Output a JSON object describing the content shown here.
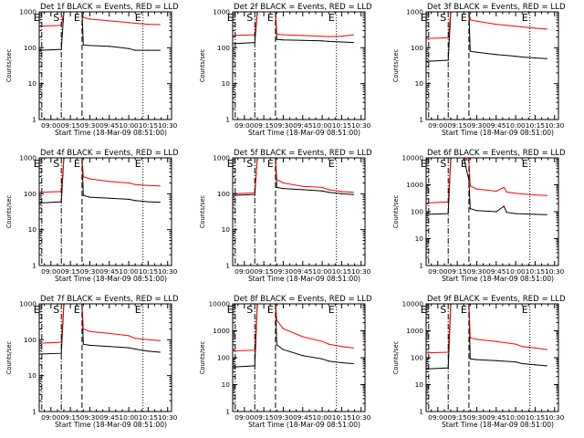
{
  "figure": {
    "panel_count": 9,
    "grid": "3x3",
    "colors": {
      "events": "#000000",
      "lld": "#ff0000",
      "background": "#ffffff"
    }
  },
  "chart_data": [
    {
      "type": "line",
      "title": "Det 1f BLACK = Events, RED = LLD",
      "xlabel": "Start Time (18-Mar-09 08:51:00)",
      "ylabel": "Counts/sec",
      "xlim": [
        "08:51",
        "10:33"
      ],
      "ylim": [
        1,
        1000
      ],
      "yscale": "log",
      "x_ticks": [
        "09:00",
        "09:15",
        "09:30",
        "09:45",
        "10:00",
        "10:15",
        "10:30"
      ],
      "y_ticks": [
        "1",
        "10",
        "100",
        "1000"
      ],
      "markers": [
        {
          "label": "E",
          "time": "08:53",
          "style": "dash-dot"
        },
        {
          "label": "S",
          "time": "09:08",
          "style": "dash-dot"
        },
        {
          "label": "E",
          "time": "09:24",
          "style": "dashed"
        },
        {
          "label": "E",
          "time": "10:11",
          "style": "dotted"
        }
      ],
      "series": [
        {
          "name": "Events",
          "color": "#000000",
          "x": [
            "08:51",
            "09:08",
            "09:10",
            "09:20",
            "09:24",
            "09:25",
            "09:30",
            "09:45",
            "10:00",
            "10:05",
            "10:15",
            "10:24"
          ],
          "y": [
            85,
            90,
            1000,
            1000,
            1000,
            120,
            115,
            110,
            95,
            85,
            85,
            85
          ]
        },
        {
          "name": "LLD",
          "color": "#ff0000",
          "x": [
            "08:51",
            "09:08",
            "09:10",
            "09:20",
            "09:24",
            "09:25",
            "09:30",
            "09:45",
            "10:00",
            "10:05",
            "10:15",
            "10:24"
          ],
          "y": [
            400,
            420,
            1000,
            1000,
            1000,
            700,
            630,
            560,
            500,
            480,
            450,
            440
          ]
        }
      ]
    },
    {
      "type": "line",
      "title": "Det 2f BLACK = Events, RED = LLD",
      "xlabel": "Start Time (18-Mar-09 08:51:00)",
      "ylabel": "Counts/sec",
      "xlim": [
        "08:51",
        "10:33"
      ],
      "ylim": [
        1,
        1000
      ],
      "yscale": "log",
      "x_ticks": [
        "09:00",
        "09:15",
        "09:30",
        "09:45",
        "10:00",
        "10:15",
        "10:30"
      ],
      "y_ticks": [
        "1",
        "10",
        "100",
        "1000"
      ],
      "markers": [
        {
          "label": "E",
          "time": "08:53",
          "style": "dash-dot"
        },
        {
          "label": "S",
          "time": "09:08",
          "style": "dash-dot"
        },
        {
          "label": "E",
          "time": "09:24",
          "style": "dashed"
        },
        {
          "label": "E",
          "time": "10:11",
          "style": "dotted"
        }
      ],
      "series": [
        {
          "name": "Events",
          "color": "#000000",
          "x": [
            "08:51",
            "09:08",
            "09:10",
            "09:20",
            "09:24",
            "09:25",
            "09:30",
            "09:45",
            "10:00",
            "10:05",
            "10:15",
            "10:24"
          ],
          "y": [
            130,
            140,
            1000,
            1000,
            1000,
            170,
            165,
            160,
            155,
            150,
            145,
            140
          ]
        },
        {
          "name": "LLD",
          "color": "#ff0000",
          "x": [
            "08:51",
            "09:08",
            "09:10",
            "09:20",
            "09:24",
            "09:25",
            "09:30",
            "09:45",
            "10:00",
            "10:05",
            "10:15",
            "10:24"
          ],
          "y": [
            220,
            230,
            1000,
            1000,
            1000,
            240,
            230,
            220,
            210,
            205,
            210,
            230
          ]
        }
      ]
    },
    {
      "type": "line",
      "title": "Det 3f BLACK = Events, RED = LLD",
      "xlabel": "Start Time (18-Mar-09 08:51:00)",
      "ylabel": "Counts/sec",
      "xlim": [
        "08:51",
        "10:33"
      ],
      "ylim": [
        1,
        1000
      ],
      "yscale": "log",
      "x_ticks": [
        "09:00",
        "09:15",
        "09:30",
        "09:45",
        "10:00",
        "10:15",
        "10:30"
      ],
      "y_ticks": [
        "1",
        "10",
        "100",
        "1000"
      ],
      "markers": [
        {
          "label": "E",
          "time": "08:53",
          "style": "dash-dot"
        },
        {
          "label": "S",
          "time": "09:08",
          "style": "dash-dot"
        },
        {
          "label": "E",
          "time": "09:24",
          "style": "dashed"
        },
        {
          "label": "E",
          "time": "10:11",
          "style": "dotted"
        }
      ],
      "series": [
        {
          "name": "Events",
          "color": "#000000",
          "x": [
            "08:51",
            "09:08",
            "09:10",
            "09:20",
            "09:24",
            "09:25",
            "09:30",
            "09:45",
            "10:00",
            "10:05",
            "10:15",
            "10:24"
          ],
          "y": [
            42,
            45,
            1000,
            1000,
            1000,
            80,
            75,
            65,
            58,
            55,
            52,
            50
          ]
        },
        {
          "name": "LLD",
          "color": "#ff0000",
          "x": [
            "08:51",
            "09:08",
            "09:10",
            "09:20",
            "09:24",
            "09:25",
            "09:30",
            "09:45",
            "10:00",
            "10:05",
            "10:15",
            "10:24"
          ],
          "y": [
            180,
            190,
            1000,
            1000,
            1000,
            600,
            550,
            450,
            400,
            380,
            350,
            330
          ]
        }
      ]
    },
    {
      "type": "line",
      "title": "Det 4f BLACK = Events, RED = LLD",
      "xlabel": "Start Time (18-Mar-09 08:51:00)",
      "ylabel": "Counts/sec",
      "xlim": [
        "08:51",
        "10:33"
      ],
      "ylim": [
        1,
        1000
      ],
      "yscale": "log",
      "x_ticks": [
        "09:00",
        "09:15",
        "09:30",
        "09:45",
        "10:00",
        "10:15",
        "10:30"
      ],
      "y_ticks": [
        "1",
        "10",
        "100",
        "1000"
      ],
      "markers": [
        {
          "label": "E",
          "time": "08:53",
          "style": "dash-dot"
        },
        {
          "label": "S",
          "time": "09:08",
          "style": "dash-dot"
        },
        {
          "label": "E",
          "time": "09:24",
          "style": "dashed"
        },
        {
          "label": "E",
          "time": "10:11",
          "style": "dotted"
        }
      ],
      "series": [
        {
          "name": "Events",
          "color": "#000000",
          "x": [
            "08:51",
            "09:08",
            "09:10",
            "09:20",
            "09:24",
            "09:25",
            "09:30",
            "09:45",
            "10:00",
            "10:05",
            "10:15",
            "10:24"
          ],
          "y": [
            55,
            60,
            1000,
            1000,
            1000,
            90,
            80,
            75,
            70,
            65,
            60,
            58
          ]
        },
        {
          "name": "LLD",
          "color": "#ff0000",
          "x": [
            "08:51",
            "09:08",
            "09:10",
            "09:20",
            "09:24",
            "09:25",
            "09:30",
            "09:45",
            "10:00",
            "10:05",
            "10:15",
            "10:24"
          ],
          "y": [
            110,
            115,
            1000,
            1000,
            1000,
            300,
            260,
            220,
            200,
            180,
            170,
            165
          ]
        }
      ]
    },
    {
      "type": "line",
      "title": "Det 5f BLACK = Events, RED = LLD",
      "xlabel": "Start Time (18-Mar-09 08:51:00)",
      "ylabel": "Counts/sec",
      "xlim": [
        "08:51",
        "10:33"
      ],
      "ylim": [
        1,
        1000
      ],
      "yscale": "log",
      "x_ticks": [
        "09:00",
        "09:15",
        "09:30",
        "09:45",
        "10:00",
        "10:15",
        "10:30"
      ],
      "y_ticks": [
        "1",
        "10",
        "100",
        "1000"
      ],
      "markers": [
        {
          "label": "E",
          "time": "08:53",
          "style": "dash-dot"
        },
        {
          "label": "S",
          "time": "09:08",
          "style": "dash-dot"
        },
        {
          "label": "E",
          "time": "09:24",
          "style": "dashed"
        },
        {
          "label": "E",
          "time": "10:11",
          "style": "dotted"
        }
      ],
      "series": [
        {
          "name": "Events",
          "color": "#000000",
          "x": [
            "08:51",
            "09:08",
            "09:10",
            "09:20",
            "09:24",
            "09:25",
            "09:30",
            "09:45",
            "10:00",
            "10:05",
            "10:15",
            "10:24"
          ],
          "y": [
            90,
            95,
            1000,
            1000,
            1000,
            150,
            140,
            130,
            120,
            110,
            100,
            95
          ]
        },
        {
          "name": "LLD",
          "color": "#ff0000",
          "x": [
            "08:51",
            "09:08",
            "09:10",
            "09:20",
            "09:24",
            "09:25",
            "09:30",
            "09:45",
            "10:00",
            "10:05",
            "10:15",
            "10:24"
          ],
          "y": [
            100,
            105,
            1000,
            1000,
            1000,
            250,
            200,
            160,
            150,
            130,
            115,
            110
          ]
        }
      ]
    },
    {
      "type": "line",
      "title": "Det 6f BLACK = Events, RED = LLD",
      "xlabel": "Start Time (18-Mar-09 08:51:00)",
      "ylabel": "Counts/sec",
      "xlim": [
        "08:51",
        "10:33"
      ],
      "ylim": [
        1,
        10000
      ],
      "yscale": "log",
      "x_ticks": [
        "09:00",
        "09:15",
        "09:30",
        "09:45",
        "10:00",
        "10:15",
        "10:30"
      ],
      "y_ticks": [
        "1",
        "10",
        "100",
        "1000",
        "10000"
      ],
      "markers": [
        {
          "label": "E",
          "time": "08:53",
          "style": "dash-dot"
        },
        {
          "label": "S",
          "time": "09:08",
          "style": "dash-dot"
        },
        {
          "label": "E",
          "time": "09:24",
          "style": "dashed"
        },
        {
          "label": "E",
          "time": "10:11",
          "style": "dotted"
        }
      ],
      "series": [
        {
          "name": "Events",
          "color": "#000000",
          "x": [
            "08:51",
            "09:08",
            "09:10",
            "09:20",
            "09:24",
            "09:25",
            "09:30",
            "09:45",
            "09:51",
            "09:53",
            "10:00",
            "10:15",
            "10:24"
          ],
          "y": [
            80,
            85,
            10000,
            10000,
            1500,
            130,
            110,
            100,
            160,
            95,
            85,
            80,
            78
          ]
        },
        {
          "name": "LLD",
          "color": "#ff0000",
          "x": [
            "08:51",
            "09:08",
            "09:10",
            "09:20",
            "09:24",
            "09:25",
            "09:30",
            "09:45",
            "09:51",
            "09:53",
            "10:00",
            "10:15",
            "10:24"
          ],
          "y": [
            210,
            230,
            10000,
            10000,
            8000,
            900,
            700,
            580,
            800,
            540,
            480,
            420,
            400
          ]
        }
      ]
    },
    {
      "type": "line",
      "title": "Det 7f BLACK = Events, RED = LLD",
      "xlabel": "Start Time (18-Mar-09 08:51:00)",
      "ylabel": "Counts/sec",
      "xlim": [
        "08:51",
        "10:33"
      ],
      "ylim": [
        1,
        1000
      ],
      "yscale": "log",
      "x_ticks": [
        "09:00",
        "09:15",
        "09:30",
        "09:45",
        "10:00",
        "10:15",
        "10:30"
      ],
      "y_ticks": [
        "1",
        "10",
        "100",
        "1000"
      ],
      "markers": [
        {
          "label": "E",
          "time": "08:53",
          "style": "dash-dot"
        },
        {
          "label": "S",
          "time": "09:08",
          "style": "dash-dot"
        },
        {
          "label": "E",
          "time": "09:24",
          "style": "dashed"
        },
        {
          "label": "E",
          "time": "10:11",
          "style": "dotted"
        }
      ],
      "series": [
        {
          "name": "Events",
          "color": "#000000",
          "x": [
            "08:51",
            "09:08",
            "09:10",
            "09:20",
            "09:24",
            "09:25",
            "09:30",
            "09:45",
            "10:00",
            "10:05",
            "10:15",
            "10:24"
          ],
          "y": [
            40,
            42,
            1000,
            1000,
            1000,
            75,
            70,
            65,
            60,
            55,
            48,
            45
          ]
        },
        {
          "name": "LLD",
          "color": "#ff0000",
          "x": [
            "08:51",
            "09:08",
            "09:10",
            "09:20",
            "09:24",
            "09:25",
            "09:30",
            "09:45",
            "10:00",
            "10:05",
            "10:15",
            "10:24"
          ],
          "y": [
            80,
            85,
            1000,
            1000,
            1000,
            200,
            170,
            150,
            130,
            110,
            100,
            95
          ]
        }
      ]
    },
    {
      "type": "line",
      "title": "Det 8f BLACK = Events, RED = LLD",
      "xlabel": "Start Time (18-Mar-09 08:51:00)",
      "ylabel": "Counts/sec",
      "xlim": [
        "08:51",
        "10:33"
      ],
      "ylim": [
        1,
        10000
      ],
      "yscale": "log",
      "x_ticks": [
        "09:00",
        "09:15",
        "09:30",
        "09:45",
        "10:00",
        "10:15",
        "10:30"
      ],
      "y_ticks": [
        "1",
        "10",
        "100",
        "1000",
        "10000"
      ],
      "markers": [
        {
          "label": "E",
          "time": "08:53",
          "style": "dash-dot"
        },
        {
          "label": "S",
          "time": "09:08",
          "style": "dash-dot"
        },
        {
          "label": "E",
          "time": "09:24",
          "style": "dashed"
        },
        {
          "label": "E",
          "time": "10:11",
          "style": "dotted"
        }
      ],
      "series": [
        {
          "name": "Events",
          "color": "#000000",
          "x": [
            "08:51",
            "09:08",
            "09:10",
            "09:20",
            "09:24",
            "09:25",
            "09:30",
            "09:45",
            "10:00",
            "10:05",
            "10:15",
            "10:24"
          ],
          "y": [
            45,
            50,
            10000,
            10000,
            10000,
            300,
            200,
            120,
            90,
            75,
            65,
            60
          ]
        },
        {
          "name": "LLD",
          "color": "#ff0000",
          "x": [
            "08:51",
            "09:08",
            "09:10",
            "09:20",
            "09:24",
            "09:25",
            "09:30",
            "09:45",
            "10:00",
            "10:05",
            "10:15",
            "10:24"
          ],
          "y": [
            180,
            190,
            10000,
            10000,
            10000,
            2500,
            1200,
            600,
            400,
            320,
            260,
            230
          ]
        }
      ]
    },
    {
      "type": "line",
      "title": "Det 9f BLACK = Events, RED = LLD",
      "xlabel": "Start Time (18-Mar-09 08:51:00)",
      "ylabel": "Counts/sec",
      "xlim": [
        "08:51",
        "10:33"
      ],
      "ylim": [
        1,
        10000
      ],
      "yscale": "log",
      "x_ticks": [
        "09:00",
        "09:15",
        "09:30",
        "09:45",
        "10:00",
        "10:15",
        "10:30"
      ],
      "y_ticks": [
        "1",
        "10",
        "100",
        "1000",
        "10000"
      ],
      "markers": [
        {
          "label": "E",
          "time": "08:53",
          "style": "dash-dot"
        },
        {
          "label": "S",
          "time": "09:08",
          "style": "dash-dot"
        },
        {
          "label": "E",
          "time": "09:24",
          "style": "dashed"
        },
        {
          "label": "E",
          "time": "10:11",
          "style": "dotted"
        }
      ],
      "series": [
        {
          "name": "Events",
          "color": "#000000",
          "x": [
            "08:51",
            "09:08",
            "09:10",
            "09:20",
            "09:24",
            "09:25",
            "09:30",
            "09:45",
            "10:00",
            "10:05",
            "10:15",
            "10:24"
          ],
          "y": [
            38,
            42,
            10000,
            10000,
            10000,
            90,
            85,
            78,
            70,
            60,
            55,
            50
          ]
        },
        {
          "name": "LLD",
          "color": "#ff0000",
          "x": [
            "08:51",
            "09:08",
            "09:10",
            "09:20",
            "09:24",
            "09:25",
            "09:30",
            "09:45",
            "10:00",
            "10:05",
            "10:15",
            "10:24"
          ],
          "y": [
            150,
            160,
            10000,
            10000,
            10000,
            550,
            480,
            400,
            320,
            260,
            230,
            200
          ]
        }
      ]
    }
  ]
}
